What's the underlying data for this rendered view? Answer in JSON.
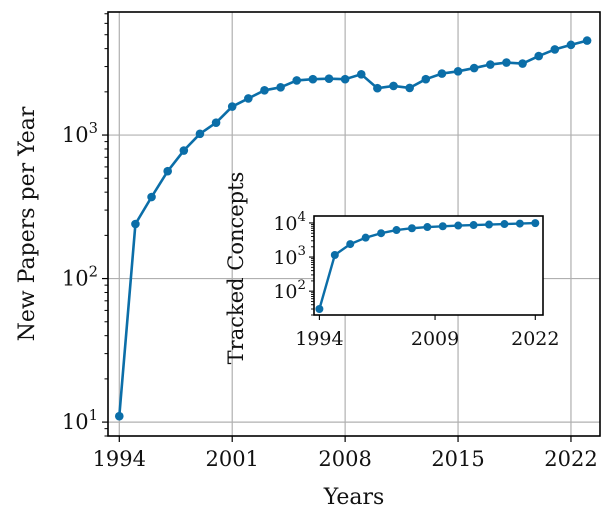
{
  "chart_data": [
    {
      "type": "line",
      "title": "",
      "xlabel": "Years",
      "ylabel": "New Papers per Year",
      "yscale": "log",
      "xlim": [
        1993.3,
        2023.8
      ],
      "ylim": [
        8,
        7200
      ],
      "grid": true,
      "color": "#0b6ea8",
      "xticks": [
        1994,
        2001,
        2008,
        2015,
        2022
      ],
      "xtick_labels": [
        "1994",
        "2001",
        "2008",
        "2015",
        "2022"
      ],
      "yticks": [
        10,
        100,
        1000
      ],
      "ytick_labels": [
        {
          "base": "10",
          "exp": "1"
        },
        {
          "base": "10",
          "exp": "2"
        },
        {
          "base": "10",
          "exp": "3"
        }
      ],
      "x": [
        1994,
        1995,
        1996,
        1997,
        1998,
        1999,
        2000,
        2001,
        2002,
        2003,
        2004,
        2005,
        2006,
        2007,
        2008,
        2009,
        2010,
        2011,
        2012,
        2013,
        2014,
        2015,
        2016,
        2017,
        2018,
        2019,
        2020,
        2021,
        2022,
        2023
      ],
      "y": [
        11,
        240,
        370,
        560,
        780,
        1020,
        1220,
        1580,
        1800,
        2050,
        2150,
        2400,
        2450,
        2470,
        2450,
        2650,
        2120,
        2200,
        2130,
        2450,
        2680,
        2780,
        2930,
        3100,
        3200,
        3150,
        3550,
        3950,
        4250,
        4550
      ]
    },
    {
      "type": "line",
      "title": "",
      "xlabel": "",
      "ylabel": "Tracked Concepts",
      "yscale": "log",
      "xlim": [
        1993.3,
        2023
      ],
      "ylim": [
        20,
        16000
      ],
      "grid": false,
      "color": "#0b6ea8",
      "xticks": [
        1994,
        2009,
        2022
      ],
      "xtick_labels": [
        "1994",
        "2009",
        "2022"
      ],
      "yticks": [
        100,
        1000,
        10000
      ],
      "ytick_labels": [
        {
          "base": "10",
          "exp": "2"
        },
        {
          "base": "10",
          "exp": "3"
        },
        {
          "base": "10",
          "exp": "4"
        }
      ],
      "x": [
        1994,
        1996,
        1998,
        2000,
        2002,
        2004,
        2006,
        2008,
        2010,
        2012,
        2014,
        2016,
        2018,
        2020,
        2022
      ],
      "y": [
        30,
        1150,
        2400,
        3700,
        5000,
        6200,
        7000,
        7600,
        8000,
        8400,
        8700,
        9000,
        9300,
        9600,
        9900
      ]
    }
  ]
}
